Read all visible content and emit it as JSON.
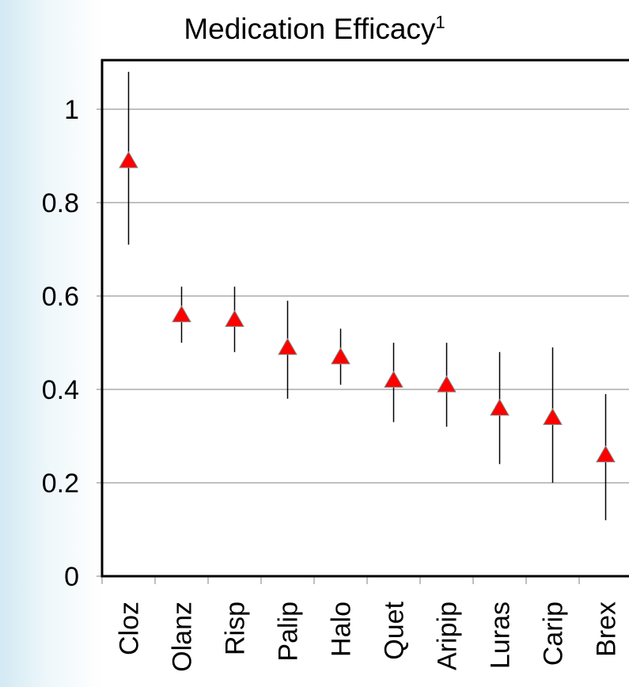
{
  "chart_data": {
    "type": "scatter",
    "title": "Medication Efficacy",
    "title_superscript": "1",
    "categories": [
      "Cloz",
      "Olanz",
      "Risp",
      "Palip",
      "Halo",
      "Quet",
      "Aripip",
      "Luras",
      "Carip",
      "Brex"
    ],
    "series": [
      {
        "values": [
          0.89,
          0.56,
          0.55,
          0.49,
          0.47,
          0.42,
          0.41,
          0.36,
          0.34,
          0.26
        ],
        "lower": [
          0.71,
          0.5,
          0.48,
          0.38,
          0.41,
          0.33,
          0.32,
          0.24,
          0.2,
          0.12
        ],
        "upper": [
          1.08,
          0.62,
          0.62,
          0.59,
          0.53,
          0.5,
          0.5,
          0.48,
          0.49,
          0.39
        ]
      }
    ],
    "yticks": [
      0,
      0.2,
      0.4,
      0.6,
      0.8,
      1
    ],
    "ylim": [
      0,
      1.1
    ],
    "grid": true,
    "marker_color": "#ff0000",
    "marker_edge_color": "#888888"
  }
}
